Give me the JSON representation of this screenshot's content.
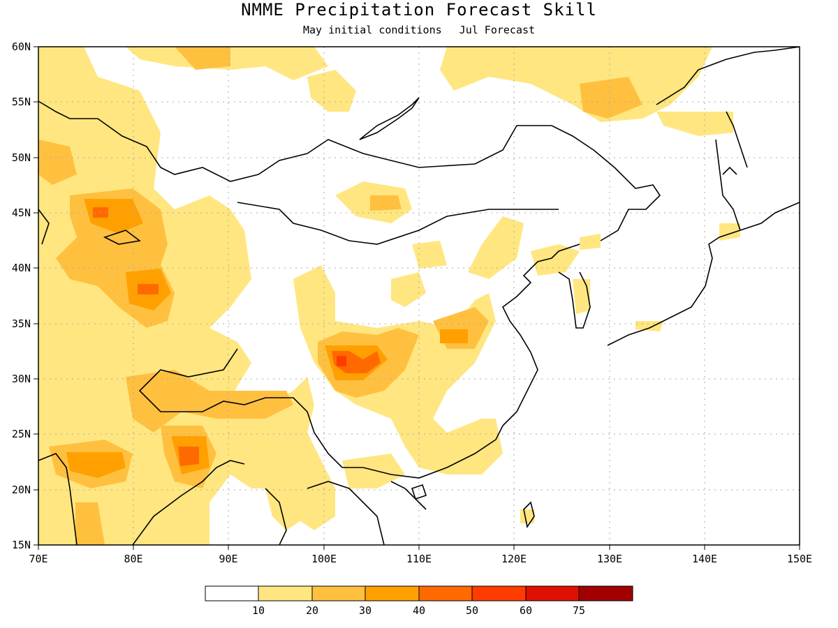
{
  "title": "NMME Precipitation Forecast Skill",
  "subtitle": {
    "initial": "May initial conditions",
    "forecast": "Jul Forecast"
  },
  "axes": {
    "lon_labels": [
      "70E",
      "80E",
      "90E",
      "100E",
      "110E",
      "120E",
      "130E",
      "140E",
      "150E"
    ],
    "lat_labels": [
      "60N",
      "55N",
      "50N",
      "45N",
      "40N",
      "35N",
      "30N",
      "25N",
      "20N",
      "15N"
    ],
    "lon_range": [
      70,
      150
    ],
    "lat_range": [
      15,
      60
    ],
    "grid": "dotted"
  },
  "colorbar": {
    "bins": [
      "#ffffff",
      "#ffe680",
      "#ffc040",
      "#ffa000",
      "#ff6a00",
      "#ff3c00",
      "#e01000",
      "#a00000"
    ],
    "tick_labels": [
      "10",
      "20",
      "30",
      "40",
      "50",
      "60",
      "75"
    ]
  },
  "colors": {
    "level1": "#ffe680",
    "level2": "#ffc040",
    "level3": "#ffa000",
    "level4": "#ff6a00",
    "level5": "#ff3c00"
  }
}
